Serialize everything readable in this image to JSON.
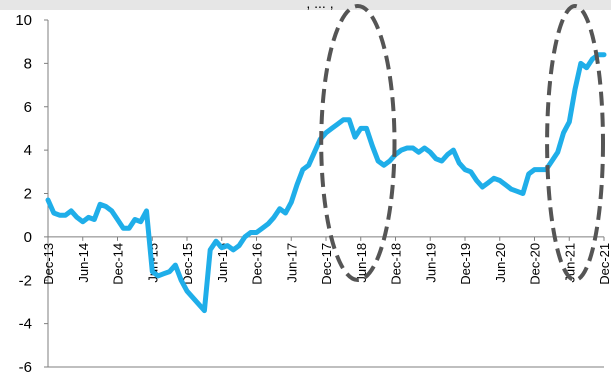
{
  "chart_data": {
    "type": "line",
    "title": "",
    "xlabel": "",
    "ylabel": "",
    "ylim": [
      -6,
      10
    ],
    "yticks": [
      10,
      8,
      6,
      4,
      2,
      0,
      -2,
      -4,
      -6
    ],
    "grid": false,
    "legend": "none",
    "x_tick_labels": [
      "Dec-13",
      "Jun-14",
      "Dec-14",
      "Jun-15",
      "Dec-15",
      "Jun-16",
      "Dec-16",
      "Jun-17",
      "Dec-17",
      "Jun-18",
      "Dec-18",
      "Jun-19",
      "Dec-19",
      "Jun-20",
      "Dec-20",
      "Jun-21",
      "Dec-21"
    ],
    "line_color": "#1faee9",
    "highlight_color": "#555555",
    "series": [
      {
        "x": [
          "Dec-13",
          "Jan-14",
          "Feb-14",
          "Mar-14",
          "Apr-14",
          "May-14",
          "Jun-14",
          "Jul-14",
          "Aug-14",
          "Sep-14",
          "Oct-14",
          "Nov-14",
          "Dec-14",
          "Jan-15",
          "Feb-15",
          "Mar-15",
          "Apr-15",
          "May-15",
          "Jun-15",
          "Jul-15",
          "Aug-15",
          "Sep-15",
          "Oct-15",
          "Nov-15",
          "Dec-15",
          "Jan-16",
          "Feb-16",
          "Mar-16",
          "Apr-16",
          "May-16",
          "Jun-16",
          "Jul-16",
          "Aug-16",
          "Sep-16",
          "Oct-16",
          "Nov-16",
          "Dec-16",
          "Jan-17",
          "Feb-17",
          "Mar-17",
          "Apr-17",
          "May-17",
          "Jun-17",
          "Jul-17",
          "Aug-17",
          "Sep-17",
          "Oct-17",
          "Nov-17",
          "Dec-17",
          "Jan-18",
          "Feb-18",
          "Mar-18",
          "Apr-18",
          "May-18",
          "Jun-18",
          "Jul-18",
          "Aug-18",
          "Sep-18",
          "Oct-18",
          "Nov-18",
          "Dec-18",
          "Jan-19",
          "Feb-19",
          "Mar-19",
          "Apr-19",
          "May-19",
          "Jun-19",
          "Jul-19",
          "Aug-19",
          "Sep-19",
          "Oct-19",
          "Nov-19",
          "Dec-19",
          "Jan-20",
          "Feb-20",
          "Mar-20",
          "Apr-20",
          "May-20",
          "Jun-20",
          "Jul-20",
          "Aug-20",
          "Sep-20",
          "Oct-20",
          "Nov-20",
          "Dec-20",
          "Jan-21",
          "Feb-21",
          "Mar-21",
          "Apr-21",
          "May-21",
          "Jun-21",
          "Jul-21",
          "Aug-21",
          "Sep-21",
          "Oct-21",
          "Nov-21",
          "Dec-21"
        ],
        "values": [
          1.7,
          1.1,
          1.0,
          1.0,
          1.2,
          0.9,
          0.7,
          0.9,
          0.8,
          1.5,
          1.4,
          1.2,
          0.8,
          0.4,
          0.4,
          0.8,
          0.7,
          1.2,
          -1.6,
          -1.8,
          -1.7,
          -1.6,
          -1.3,
          -2.0,
          -2.5,
          -2.8,
          -3.1,
          -3.4,
          -0.6,
          -0.2,
          -0.5,
          -0.4,
          -0.6,
          -0.4,
          0.0,
          0.2,
          0.2,
          0.4,
          0.6,
          0.9,
          1.3,
          1.1,
          1.6,
          2.4,
          3.1,
          3.3,
          3.9,
          4.5,
          4.8,
          5.0,
          5.2,
          5.4,
          5.4,
          4.6,
          5.0,
          5.0,
          4.2,
          3.5,
          3.3,
          3.5,
          3.8,
          4.0,
          4.1,
          4.1,
          3.9,
          4.1,
          3.9,
          3.6,
          3.5,
          3.8,
          4.0,
          3.4,
          3.1,
          3.0,
          2.6,
          2.3,
          2.5,
          2.7,
          2.6,
          2.4,
          2.2,
          2.1,
          2.0,
          2.9,
          3.1,
          3.1,
          3.1,
          3.5,
          3.9,
          4.8,
          5.3,
          6.8,
          8.0,
          7.8,
          8.2,
          8.4,
          8.4
        ]
      }
    ],
    "highlights": [
      {
        "from": "Nov-17",
        "to": "Dec-18"
      },
      {
        "from": "Feb-21",
        "to": "Dec-21"
      }
    ]
  },
  "cut_title": ", ... ,"
}
